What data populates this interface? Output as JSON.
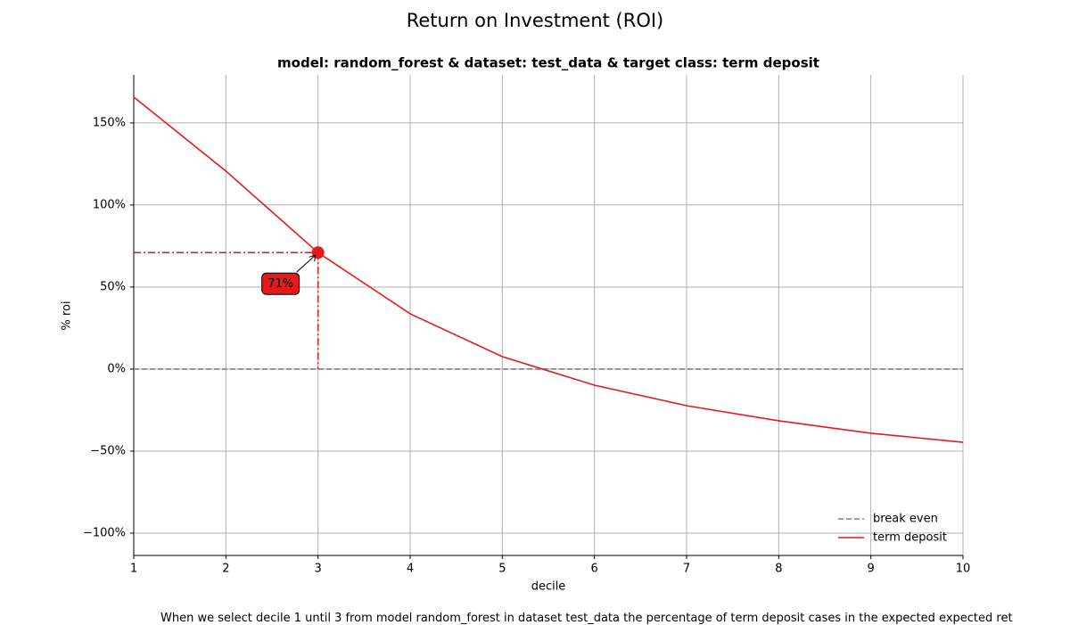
{
  "chart_data": {
    "type": "line",
    "title": "Return on Investment (ROI)",
    "subtitle": "model: random_forest & dataset: test_data & target class: term deposit",
    "xlabel": "decile",
    "ylabel": "% roi",
    "x": [
      1,
      2,
      3,
      4,
      5,
      6,
      7,
      8,
      9,
      10
    ],
    "series": [
      {
        "name": "break even",
        "color": "#808080",
        "dash": true,
        "values": [
          0,
          0,
          0,
          0,
          0,
          0,
          0,
          0,
          0,
          0
        ]
      },
      {
        "name": "term deposit",
        "color": "#e41a1c",
        "values": [
          165.8,
          120.7,
          71,
          33.7,
          7.6,
          -9.8,
          -22.3,
          -31.5,
          -39.1,
          -44.6
        ]
      }
    ],
    "highlight": {
      "x": 3,
      "value": 71,
      "label": "71%"
    },
    "xlim": [
      1,
      10
    ],
    "xticks": [
      1,
      2,
      3,
      4,
      5,
      6,
      7,
      8,
      9,
      10
    ],
    "ylim": [
      -113.6,
      179.3
    ],
    "yticks": [
      {
        "value": -100,
        "label": "−100%"
      },
      {
        "value": -50,
        "label": "−50%"
      },
      {
        "value": 0,
        "label": "0%"
      },
      {
        "value": 50,
        "label": "50%"
      },
      {
        "value": 100,
        "label": "100%"
      },
      {
        "value": 150,
        "label": "150%"
      }
    ],
    "grid": true,
    "legend": "lower right",
    "footer": "When we select decile 1 until 3 from model random_forest in dataset test_data the percentage of term deposit cases in the expected expected ret"
  }
}
